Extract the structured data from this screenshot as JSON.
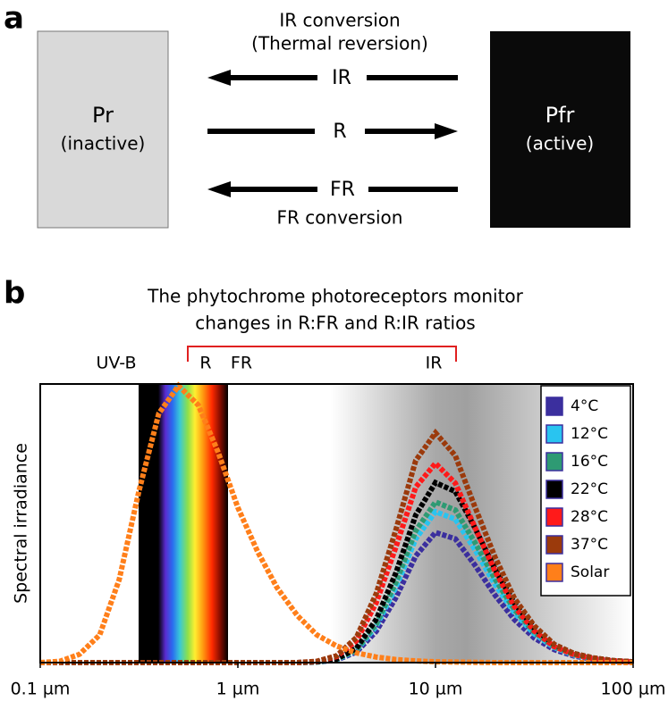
{
  "panel_a": {
    "label": "a",
    "left_box": {
      "name": "Pr",
      "state": "(inactive)"
    },
    "right_box": {
      "name": "Pfr",
      "state": "(active)"
    },
    "top_caption": [
      "IR conversion",
      "(Thermal reversion)"
    ],
    "arrows": [
      {
        "label": "IR"
      },
      {
        "label": "R"
      },
      {
        "label": "FR"
      }
    ],
    "bottom_caption": "FR conversion"
  },
  "chart_data": {
    "type": "line",
    "panel_label": "b",
    "title": [
      "The phytochrome photoreceptors monitor",
      "changes in R:FR and R:IR ratios"
    ],
    "ylabel": "Spectral irradiance",
    "band_labels": [
      "UV-B",
      "R",
      "FR",
      "IR"
    ],
    "xscale": "log",
    "xlim": [
      0.1,
      100
    ],
    "xticks": [
      {
        "value": 0.1,
        "label": "0.1 µm"
      },
      {
        "value": 1,
        "label": "1 µm"
      },
      {
        "value": 10,
        "label": "10 µm"
      },
      {
        "value": 100,
        "label": "100 µm"
      }
    ],
    "ylim": [
      0,
      1
    ],
    "legend": "upper right",
    "x": [
      0.1,
      0.126,
      0.158,
      0.2,
      0.251,
      0.316,
      0.398,
      0.501,
      0.631,
      0.794,
      1,
      1.26,
      1.58,
      2,
      2.51,
      3.16,
      3.98,
      5.01,
      6.31,
      7.94,
      10,
      12.6,
      15.8,
      20,
      25.1,
      31.6,
      39.8,
      50.1,
      63.1,
      79.4,
      100
    ],
    "series": [
      {
        "name": "4°C",
        "color": "#3b2f9e",
        "values": [
          0,
          0,
          0,
          0,
          0,
          0,
          0,
          0,
          0,
          0,
          0,
          0,
          0,
          0,
          0.002,
          0.009,
          0.038,
          0.113,
          0.235,
          0.385,
          0.47,
          0.447,
          0.353,
          0.244,
          0.155,
          0.089,
          0.047,
          0.024,
          0.012,
          0.005,
          0.002
        ]
      },
      {
        "name": "12°C",
        "color": "#29c4f0",
        "values": [
          0,
          0,
          0,
          0,
          0,
          0,
          0,
          0,
          0,
          0,
          0,
          0,
          0,
          0,
          0.002,
          0.011,
          0.044,
          0.131,
          0.273,
          0.447,
          0.545,
          0.518,
          0.409,
          0.283,
          0.18,
          0.104,
          0.055,
          0.027,
          0.014,
          0.005,
          0.003
        ]
      },
      {
        "name": "16°C",
        "color": "#2e9a73",
        "values": [
          0,
          0,
          0,
          0,
          0,
          0,
          0,
          0,
          0,
          0,
          0,
          0,
          0,
          0,
          0.002,
          0.012,
          0.046,
          0.139,
          0.29,
          0.476,
          0.58,
          0.551,
          0.435,
          0.302,
          0.191,
          0.11,
          0.058,
          0.029,
          0.015,
          0.006,
          0.003
        ]
      },
      {
        "name": "22°C",
        "color": "#000000",
        "values": [
          0,
          0,
          0,
          0,
          0,
          0,
          0,
          0,
          0,
          0,
          0,
          0,
          0,
          0,
          0.003,
          0.013,
          0.052,
          0.156,
          0.325,
          0.533,
          0.65,
          0.618,
          0.488,
          0.338,
          0.215,
          0.124,
          0.065,
          0.033,
          0.016,
          0.007,
          0.003
        ]
      },
      {
        "name": "28°C",
        "color": "#ff1a1a",
        "values": [
          0,
          0,
          0,
          0,
          0,
          0,
          0,
          0,
          0,
          0,
          0,
          0,
          0,
          0,
          0.004,
          0.022,
          0.079,
          0.216,
          0.418,
          0.634,
          0.72,
          0.648,
          0.49,
          0.331,
          0.202,
          0.115,
          0.058,
          0.029,
          0.014,
          0.006,
          0.003
        ]
      },
      {
        "name": "37°C",
        "color": "#9b3a0c",
        "values": [
          0,
          0,
          0,
          0,
          0,
          0,
          0,
          0,
          0,
          0,
          0,
          0,
          0,
          0,
          0.005,
          0.025,
          0.091,
          0.249,
          0.481,
          0.73,
          0.83,
          0.747,
          0.564,
          0.382,
          0.232,
          0.133,
          0.066,
          0.033,
          0.017,
          0.007,
          0.003
        ]
      },
      {
        "name": "Solar",
        "color": "#ff7f1a",
        "values": [
          0,
          0.005,
          0.03,
          0.1,
          0.3,
          0.62,
          0.9,
          1.0,
          0.93,
          0.76,
          0.56,
          0.4,
          0.27,
          0.17,
          0.1,
          0.06,
          0.035,
          0.02,
          0.011,
          0.006,
          0.003,
          0.002,
          0.001,
          0,
          0,
          0,
          0,
          0,
          0,
          0,
          0
        ]
      }
    ]
  }
}
